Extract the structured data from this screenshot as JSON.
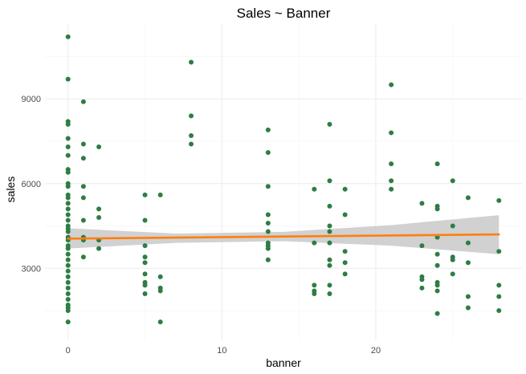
{
  "chart_data": {
    "type": "scatter",
    "title": "Sales ~ Banner",
    "xlabel": "banner",
    "ylabel": "sales",
    "xlim": [
      -1.5,
      29.5
    ],
    "ylim": [
      450,
      11650
    ],
    "x_ticks": [
      0,
      10,
      20
    ],
    "x_tick_labels": [
      "0",
      "10",
      "20"
    ],
    "y_ticks": [
      3000,
      6000,
      9000
    ],
    "y_tick_labels": [
      "3000",
      "6000",
      "9000"
    ],
    "grid": true,
    "legend": "none",
    "point_color": "#2e7d45",
    "line_color": "#ff7f0e",
    "band_color": "#cccccc",
    "points": [
      [
        0,
        11200
      ],
      [
        0,
        9700
      ],
      [
        0,
        8200
      ],
      [
        0,
        8100
      ],
      [
        0,
        7600
      ],
      [
        0,
        7300
      ],
      [
        0,
        7000
      ],
      [
        0,
        6500
      ],
      [
        0,
        6400
      ],
      [
        0,
        6000
      ],
      [
        0,
        5900
      ],
      [
        0,
        5600
      ],
      [
        0,
        5500
      ],
      [
        0,
        5300
      ],
      [
        0,
        5100
      ],
      [
        0,
        4900
      ],
      [
        0,
        4700
      ],
      [
        0,
        4500
      ],
      [
        0,
        4400
      ],
      [
        0,
        4300
      ],
      [
        0,
        4100
      ],
      [
        0,
        4000
      ],
      [
        0,
        3800
      ],
      [
        0,
        3700
      ],
      [
        0,
        3500
      ],
      [
        0,
        3300
      ],
      [
        0,
        3100
      ],
      [
        0,
        2900
      ],
      [
        0,
        2700
      ],
      [
        0,
        2500
      ],
      [
        0,
        2300
      ],
      [
        0,
        2100
      ],
      [
        0,
        1900
      ],
      [
        0,
        1700
      ],
      [
        0,
        1600
      ],
      [
        0,
        1500
      ],
      [
        0,
        1100
      ],
      [
        1,
        8900
      ],
      [
        1,
        7400
      ],
      [
        1,
        6900
      ],
      [
        1,
        5900
      ],
      [
        1,
        5500
      ],
      [
        1,
        4700
      ],
      [
        1,
        4100
      ],
      [
        1,
        4000
      ],
      [
        1,
        3400
      ],
      [
        2,
        7300
      ],
      [
        2,
        5100
      ],
      [
        2,
        4800
      ],
      [
        2,
        4000
      ],
      [
        2,
        3700
      ],
      [
        5,
        5600
      ],
      [
        5,
        4700
      ],
      [
        5,
        3800
      ],
      [
        5,
        3400
      ],
      [
        5,
        3200
      ],
      [
        5,
        2800
      ],
      [
        5,
        2500
      ],
      [
        5,
        2400
      ],
      [
        5,
        2100
      ],
      [
        6,
        5600
      ],
      [
        6,
        2700
      ],
      [
        6,
        2300
      ],
      [
        6,
        2200
      ],
      [
        6,
        1100
      ],
      [
        8,
        10300
      ],
      [
        8,
        8400
      ],
      [
        8,
        7700
      ],
      [
        8,
        7400
      ],
      [
        13,
        7900
      ],
      [
        13,
        7100
      ],
      [
        13,
        5900
      ],
      [
        13,
        4900
      ],
      [
        13,
        4600
      ],
      [
        13,
        4300
      ],
      [
        13,
        3900
      ],
      [
        13,
        3800
      ],
      [
        13,
        3700
      ],
      [
        13,
        3300
      ],
      [
        16,
        5800
      ],
      [
        16,
        3900
      ],
      [
        16,
        2400
      ],
      [
        16,
        2200
      ],
      [
        16,
        2100
      ],
      [
        17,
        8100
      ],
      [
        17,
        6100
      ],
      [
        17,
        5200
      ],
      [
        17,
        4500
      ],
      [
        17,
        4300
      ],
      [
        17,
        3900
      ],
      [
        17,
        3300
      ],
      [
        17,
        3100
      ],
      [
        17,
        2400
      ],
      [
        17,
        2100
      ],
      [
        18,
        5800
      ],
      [
        18,
        4900
      ],
      [
        18,
        3600
      ],
      [
        18,
        3200
      ],
      [
        18,
        2800
      ],
      [
        21,
        9500
      ],
      [
        21,
        7800
      ],
      [
        21,
        6700
      ],
      [
        21,
        6100
      ],
      [
        21,
        5800
      ],
      [
        23,
        5300
      ],
      [
        23,
        3800
      ],
      [
        23,
        2700
      ],
      [
        23,
        2600
      ],
      [
        23,
        2300
      ],
      [
        24,
        6700
      ],
      [
        24,
        5200
      ],
      [
        24,
        5100
      ],
      [
        24,
        4100
      ],
      [
        24,
        3500
      ],
      [
        24,
        3100
      ],
      [
        24,
        2500
      ],
      [
        24,
        2400
      ],
      [
        24,
        2200
      ],
      [
        24,
        1400
      ],
      [
        25,
        6100
      ],
      [
        25,
        4500
      ],
      [
        25,
        3400
      ],
      [
        25,
        3300
      ],
      [
        25,
        2800
      ],
      [
        26,
        5500
      ],
      [
        26,
        3900
      ],
      [
        26,
        3200
      ],
      [
        26,
        2000
      ],
      [
        26,
        1600
      ],
      [
        28,
        5400
      ],
      [
        28,
        3600
      ],
      [
        28,
        2400
      ],
      [
        28,
        2000
      ],
      [
        28,
        1500
      ]
    ],
    "fit": {
      "x": [
        0,
        28
      ],
      "y": [
        4050,
        4200
      ]
    },
    "band": {
      "x": [
        0,
        7,
        14,
        21,
        28
      ],
      "lower": [
        3700,
        3900,
        3960,
        3800,
        3500
      ],
      "upper": [
        4420,
        4230,
        4290,
        4530,
        4880
      ]
    }
  }
}
